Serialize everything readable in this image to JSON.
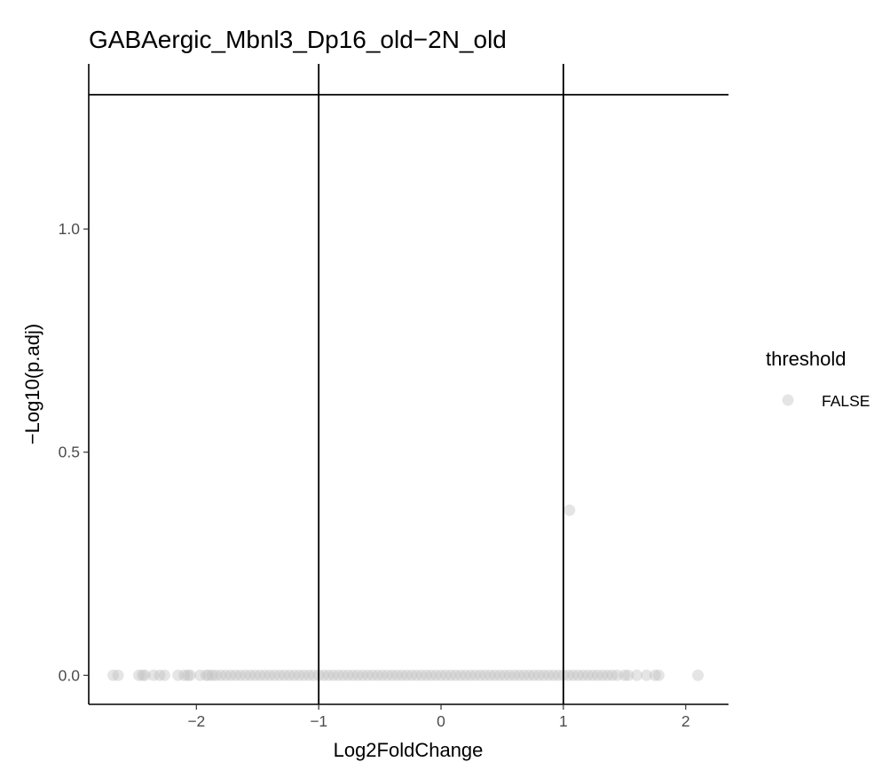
{
  "chart_data": {
    "type": "scatter",
    "title": "GABAergic_Mbnl3_Dp16_old−2N_old",
    "xlabel": "Log2FoldChange",
    "ylabel": "−Log10(p.adj)",
    "xlim": [
      -2.88,
      2.35
    ],
    "ylim": [
      -0.065,
      1.37
    ],
    "x_ticks": [
      {
        "value": -2,
        "label": "−2"
      },
      {
        "value": -1,
        "label": "−1"
      },
      {
        "value": 0,
        "label": "0"
      },
      {
        "value": 1,
        "label": "1"
      },
      {
        "value": 2,
        "label": "2"
      }
    ],
    "y_ticks": [
      {
        "value": 0.0,
        "label": "0.0"
      },
      {
        "value": 0.5,
        "label": "0.5"
      },
      {
        "value": 1.0,
        "label": "1.0"
      }
    ],
    "reference_lines": {
      "vertical": [
        -1,
        1
      ],
      "horizontal": [
        1.301
      ]
    },
    "legend": {
      "title": "threshold",
      "position": "right",
      "entries": [
        {
          "label": "FALSE",
          "color": "#bebebe"
        }
      ]
    },
    "grid": false,
    "point_color": "#bebebe",
    "point_opacity": 0.4,
    "series": [
      {
        "name": "FALSE",
        "points": [
          {
            "x": 1.05,
            "y": 0.37
          },
          {
            "x": -2.68,
            "y": 0
          },
          {
            "x": -2.64,
            "y": 0
          },
          {
            "x": -2.47,
            "y": 0
          },
          {
            "x": -2.44,
            "y": 0
          },
          {
            "x": -2.42,
            "y": 0
          },
          {
            "x": -2.35,
            "y": 0
          },
          {
            "x": -2.3,
            "y": 0
          },
          {
            "x": -2.26,
            "y": 0
          },
          {
            "x": -2.15,
            "y": 0
          },
          {
            "x": -2.1,
            "y": 0
          },
          {
            "x": -2.07,
            "y": 0
          },
          {
            "x": -2.05,
            "y": 0
          },
          {
            "x": -1.97,
            "y": 0
          },
          {
            "x": -1.92,
            "y": 0
          },
          {
            "x": -1.9,
            "y": 0
          },
          {
            "x": -1.87,
            "y": 0
          },
          {
            "x": -1.84,
            "y": 0
          },
          {
            "x": -1.8,
            "y": 0
          },
          {
            "x": -1.76,
            "y": 0
          },
          {
            "x": -1.72,
            "y": 0
          },
          {
            "x": -1.68,
            "y": 0
          },
          {
            "x": -1.64,
            "y": 0
          },
          {
            "x": -1.6,
            "y": 0
          },
          {
            "x": -1.56,
            "y": 0
          },
          {
            "x": -1.52,
            "y": 0
          },
          {
            "x": -1.48,
            "y": 0
          },
          {
            "x": -1.44,
            "y": 0
          },
          {
            "x": -1.4,
            "y": 0
          },
          {
            "x": -1.36,
            "y": 0
          },
          {
            "x": -1.32,
            "y": 0
          },
          {
            "x": -1.28,
            "y": 0
          },
          {
            "x": -1.24,
            "y": 0
          },
          {
            "x": -1.2,
            "y": 0
          },
          {
            "x": -1.16,
            "y": 0
          },
          {
            "x": -1.12,
            "y": 0
          },
          {
            "x": -1.08,
            "y": 0
          },
          {
            "x": -1.04,
            "y": 0
          },
          {
            "x": -1.0,
            "y": 0
          },
          {
            "x": -0.96,
            "y": 0
          },
          {
            "x": -0.92,
            "y": 0
          },
          {
            "x": -0.88,
            "y": 0
          },
          {
            "x": -0.84,
            "y": 0
          },
          {
            "x": -0.8,
            "y": 0
          },
          {
            "x": -0.76,
            "y": 0
          },
          {
            "x": -0.72,
            "y": 0
          },
          {
            "x": -0.68,
            "y": 0
          },
          {
            "x": -0.64,
            "y": 0
          },
          {
            "x": -0.6,
            "y": 0
          },
          {
            "x": -0.56,
            "y": 0
          },
          {
            "x": -0.52,
            "y": 0
          },
          {
            "x": -0.48,
            "y": 0
          },
          {
            "x": -0.44,
            "y": 0
          },
          {
            "x": -0.4,
            "y": 0
          },
          {
            "x": -0.36,
            "y": 0
          },
          {
            "x": -0.32,
            "y": 0
          },
          {
            "x": -0.28,
            "y": 0
          },
          {
            "x": -0.24,
            "y": 0
          },
          {
            "x": -0.2,
            "y": 0
          },
          {
            "x": -0.16,
            "y": 0
          },
          {
            "x": -0.12,
            "y": 0
          },
          {
            "x": -0.08,
            "y": 0
          },
          {
            "x": -0.04,
            "y": 0
          },
          {
            "x": 0.0,
            "y": 0
          },
          {
            "x": 0.04,
            "y": 0
          },
          {
            "x": 0.08,
            "y": 0
          },
          {
            "x": 0.12,
            "y": 0
          },
          {
            "x": 0.16,
            "y": 0
          },
          {
            "x": 0.2,
            "y": 0
          },
          {
            "x": 0.24,
            "y": 0
          },
          {
            "x": 0.28,
            "y": 0
          },
          {
            "x": 0.32,
            "y": 0
          },
          {
            "x": 0.36,
            "y": 0
          },
          {
            "x": 0.4,
            "y": 0
          },
          {
            "x": 0.44,
            "y": 0
          },
          {
            "x": 0.48,
            "y": 0
          },
          {
            "x": 0.52,
            "y": 0
          },
          {
            "x": 0.56,
            "y": 0
          },
          {
            "x": 0.6,
            "y": 0
          },
          {
            "x": 0.64,
            "y": 0
          },
          {
            "x": 0.68,
            "y": 0
          },
          {
            "x": 0.72,
            "y": 0
          },
          {
            "x": 0.76,
            "y": 0
          },
          {
            "x": 0.8,
            "y": 0
          },
          {
            "x": 0.84,
            "y": 0
          },
          {
            "x": 0.88,
            "y": 0
          },
          {
            "x": 0.92,
            "y": 0
          },
          {
            "x": 0.96,
            "y": 0
          },
          {
            "x": 1.0,
            "y": 0
          },
          {
            "x": 1.04,
            "y": 0
          },
          {
            "x": 1.08,
            "y": 0
          },
          {
            "x": 1.12,
            "y": 0
          },
          {
            "x": 1.16,
            "y": 0
          },
          {
            "x": 1.2,
            "y": 0
          },
          {
            "x": 1.24,
            "y": 0
          },
          {
            "x": 1.28,
            "y": 0
          },
          {
            "x": 1.32,
            "y": 0
          },
          {
            "x": 1.36,
            "y": 0
          },
          {
            "x": 1.4,
            "y": 0
          },
          {
            "x": 1.44,
            "y": 0
          },
          {
            "x": 1.5,
            "y": 0
          },
          {
            "x": 1.53,
            "y": 0
          },
          {
            "x": 1.6,
            "y": 0
          },
          {
            "x": 1.68,
            "y": 0
          },
          {
            "x": 1.75,
            "y": 0
          },
          {
            "x": 1.78,
            "y": 0
          },
          {
            "x": 2.1,
            "y": 0
          }
        ]
      }
    ]
  }
}
